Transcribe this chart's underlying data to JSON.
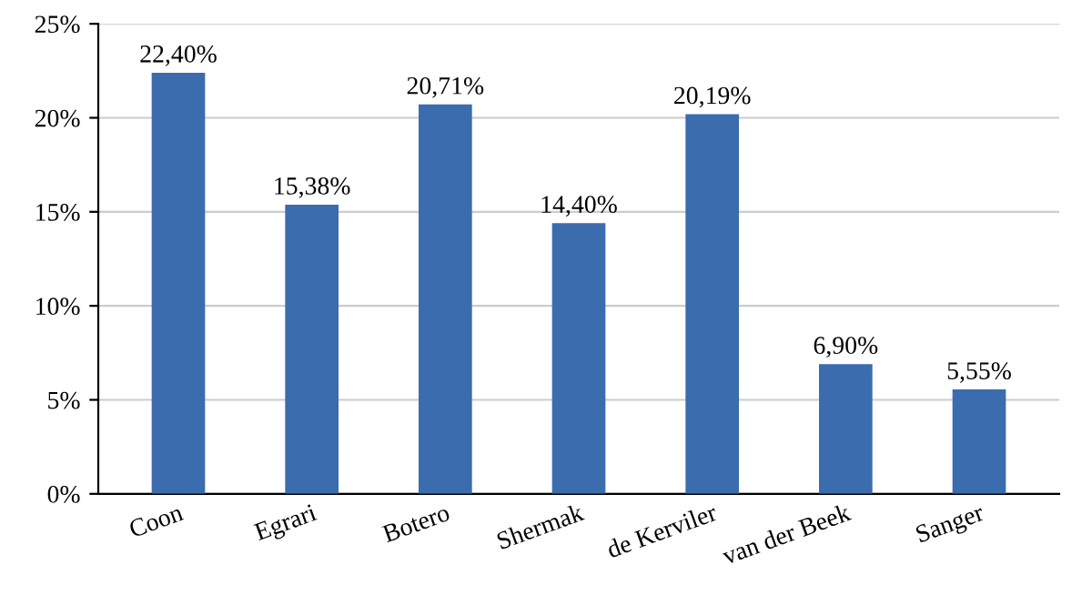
{
  "chart_data": {
    "type": "bar",
    "categories": [
      "Coon",
      "Egrari",
      "Botero",
      "Shermak",
      "de Kerviler",
      "van der Beek",
      "Sanger"
    ],
    "values": [
      22.4,
      15.38,
      20.71,
      14.4,
      20.19,
      6.9,
      5.55
    ],
    "value_labels": [
      "22,40%",
      "15,38%",
      "20,71%",
      "14,40%",
      "20,19%",
      "6,90%",
      "5,55%"
    ],
    "color": "#3b6cae",
    "ylim": [
      0,
      25
    ],
    "yticks": [
      {
        "value": 0,
        "label": "0%"
      },
      {
        "value": 5,
        "label": "5%"
      },
      {
        "value": 10,
        "label": "10%"
      },
      {
        "value": 15,
        "label": "15%"
      },
      {
        "value": 20,
        "label": "20%"
      },
      {
        "value": 25,
        "label": "25%"
      }
    ],
    "grid": "y"
  }
}
